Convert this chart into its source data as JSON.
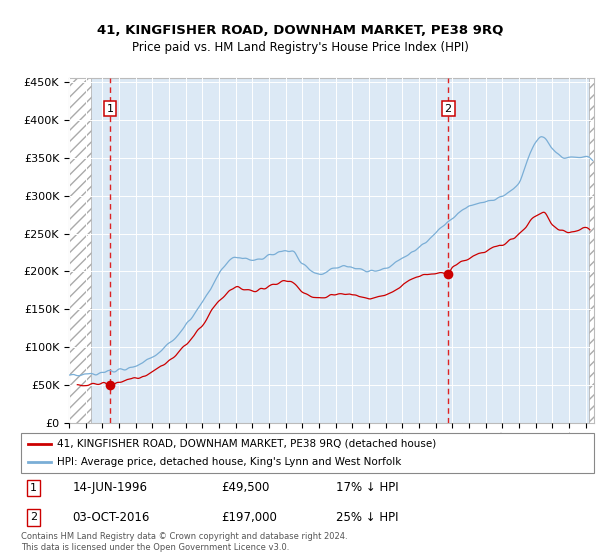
{
  "title1": "41, KINGFISHER ROAD, DOWNHAM MARKET, PE38 9RQ",
  "title2": "Price paid vs. HM Land Registry's House Price Index (HPI)",
  "hpi_color": "#7aaed6",
  "price_color": "#cc0000",
  "marker_color": "#cc0000",
  "dashed_color": "#dd2222",
  "bg_color": "#dce9f5",
  "legend_label1": "41, KINGFISHER ROAD, DOWNHAM MARKET, PE38 9RQ (detached house)",
  "legend_label2": "HPI: Average price, detached house, King's Lynn and West Norfolk",
  "annotation1_date": "14-JUN-1996",
  "annotation1_price": "£49,500",
  "annotation1_note": "17% ↓ HPI",
  "annotation1_year": 1996.45,
  "annotation1_value": 49500,
  "annotation2_date": "03-OCT-2016",
  "annotation2_price": "£197,000",
  "annotation2_note": "25% ↓ HPI",
  "annotation2_year": 2016.75,
  "annotation2_value": 197000,
  "xmin": 1994,
  "xmax": 2025.5,
  "ymin": 0,
  "ymax": 455000,
  "yticks": [
    0,
    50000,
    100000,
    150000,
    200000,
    250000,
    300000,
    350000,
    400000,
    450000
  ],
  "footer": "Contains HM Land Registry data © Crown copyright and database right 2024.\nThis data is licensed under the Open Government Licence v3.0."
}
